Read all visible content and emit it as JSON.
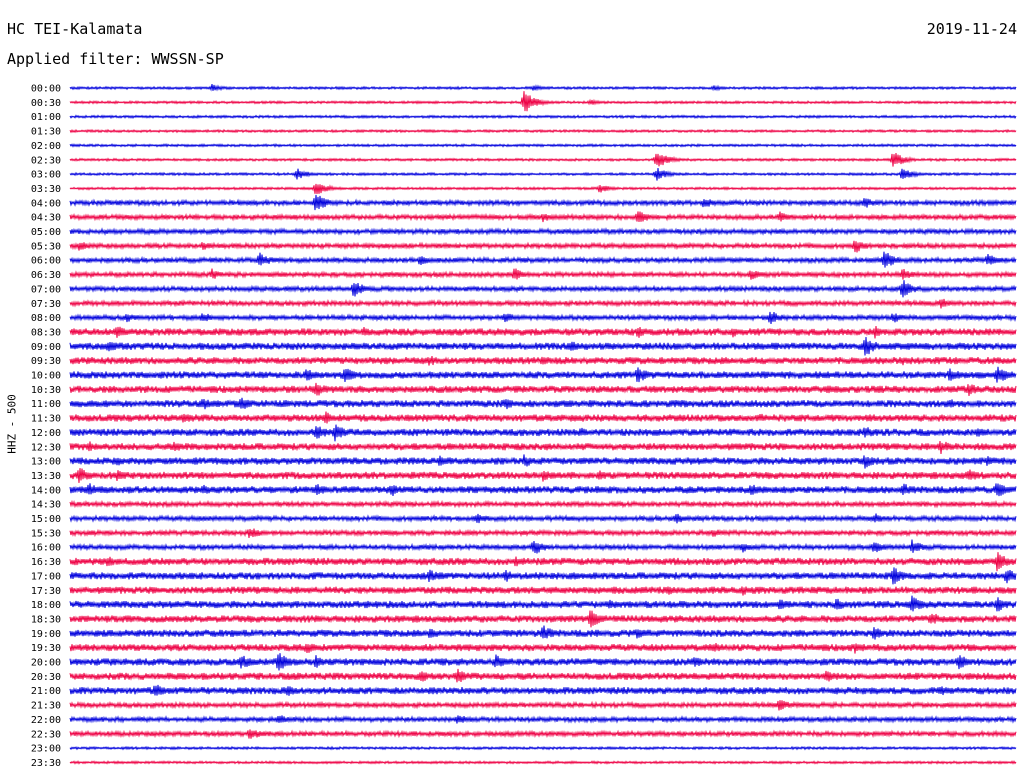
{
  "header": {
    "station": "HC TEI-Kalamata",
    "date": "2019-11-24",
    "filter": "Applied filter: WWSSN-SP"
  },
  "channel_label": "HHZ - 500",
  "colors": {
    "blue": "#0000dd",
    "red": "#ee0044"
  },
  "chart_data": {
    "type": "line",
    "description_type": "helicorder",
    "ylabel": "HHZ - 500",
    "row_labels": [
      "00:00",
      "00:30",
      "01:00",
      "01:30",
      "02:00",
      "02:30",
      "03:00",
      "03:30",
      "04:00",
      "04:30",
      "05:00",
      "05:30",
      "06:00",
      "06:30",
      "07:00",
      "07:30",
      "08:00",
      "08:30",
      "09:00",
      "09:30",
      "10:00",
      "10:30",
      "11:00",
      "11:30",
      "12:00",
      "12:30",
      "13:00",
      "13:30",
      "14:00",
      "14:30",
      "15:00",
      "15:30",
      "16:00",
      "16:30",
      "17:00",
      "17:30",
      "18:00",
      "18:30",
      "19:00",
      "19:30",
      "20:00",
      "20:30",
      "21:00",
      "21:30",
      "22:00",
      "22:30",
      "23:00",
      "23:30"
    ],
    "series_colors": [
      "blue",
      "red"
    ],
    "noise_level": [
      1,
      1,
      1,
      1,
      1,
      1,
      1,
      1,
      2,
      2,
      2,
      2,
      2,
      2,
      2,
      2,
      2,
      3,
      3,
      3,
      3,
      3,
      3,
      3,
      3,
      3,
      3,
      3,
      3,
      2,
      2,
      2,
      2,
      3,
      3,
      3,
      3,
      3,
      3,
      3,
      3,
      3,
      3,
      2,
      2,
      2,
      1,
      1
    ],
    "events": [
      {
        "row": 0,
        "x": 0.15,
        "a": 4
      },
      {
        "row": 0,
        "x": 0.49,
        "a": 3
      },
      {
        "row": 0,
        "x": 0.68,
        "a": 3
      },
      {
        "row": 1,
        "x": 0.48,
        "a": 12
      },
      {
        "row": 1,
        "x": 0.55,
        "a": 3
      },
      {
        "row": 5,
        "x": 0.62,
        "a": 10
      },
      {
        "row": 5,
        "x": 0.87,
        "a": 9
      },
      {
        "row": 6,
        "x": 0.24,
        "a": 6
      },
      {
        "row": 6,
        "x": 0.62,
        "a": 7
      },
      {
        "row": 6,
        "x": 0.88,
        "a": 7
      },
      {
        "row": 7,
        "x": 0.26,
        "a": 8
      },
      {
        "row": 7,
        "x": 0.56,
        "a": 5
      },
      {
        "row": 8,
        "x": 0.26,
        "a": 10
      },
      {
        "row": 8,
        "x": 0.67,
        "a": 6
      },
      {
        "row": 8,
        "x": 0.84,
        "a": 6
      },
      {
        "row": 9,
        "x": 0.5,
        "a": 5
      },
      {
        "row": 9,
        "x": 0.6,
        "a": 8
      },
      {
        "row": 9,
        "x": 0.75,
        "a": 6
      },
      {
        "row": 11,
        "x": 0.01,
        "a": 6
      },
      {
        "row": 11,
        "x": 0.14,
        "a": 5
      },
      {
        "row": 11,
        "x": 0.83,
        "a": 8
      },
      {
        "row": 12,
        "x": 0.2,
        "a": 9
      },
      {
        "row": 12,
        "x": 0.37,
        "a": 6
      },
      {
        "row": 12,
        "x": 0.86,
        "a": 11
      },
      {
        "row": 12,
        "x": 0.97,
        "a": 7
      },
      {
        "row": 13,
        "x": 0.15,
        "a": 6
      },
      {
        "row": 13,
        "x": 0.47,
        "a": 7
      },
      {
        "row": 13,
        "x": 0.72,
        "a": 6
      },
      {
        "row": 13,
        "x": 0.88,
        "a": 7
      },
      {
        "row": 14,
        "x": 0.3,
        "a": 9
      },
      {
        "row": 14,
        "x": 0.88,
        "a": 10
      },
      {
        "row": 15,
        "x": 0.92,
        "a": 6
      },
      {
        "row": 16,
        "x": 0.06,
        "a": 5
      },
      {
        "row": 16,
        "x": 0.14,
        "a": 6
      },
      {
        "row": 16,
        "x": 0.46,
        "a": 6
      },
      {
        "row": 16,
        "x": 0.74,
        "a": 8
      },
      {
        "row": 16,
        "x": 0.87,
        "a": 6
      },
      {
        "row": 17,
        "x": 0.05,
        "a": 7
      },
      {
        "row": 17,
        "x": 0.31,
        "a": 6
      },
      {
        "row": 17,
        "x": 0.6,
        "a": 7
      },
      {
        "row": 17,
        "x": 0.7,
        "a": 6
      },
      {
        "row": 17,
        "x": 0.85,
        "a": 7
      },
      {
        "row": 18,
        "x": 0.04,
        "a": 7
      },
      {
        "row": 18,
        "x": 0.53,
        "a": 6
      },
      {
        "row": 18,
        "x": 0.84,
        "a": 12
      },
      {
        "row": 19,
        "x": 0.38,
        "a": 6
      },
      {
        "row": 19,
        "x": 0.5,
        "a": 5
      },
      {
        "row": 19,
        "x": 0.88,
        "a": 5
      },
      {
        "row": 20,
        "x": 0.25,
        "a": 8
      },
      {
        "row": 20,
        "x": 0.29,
        "a": 9
      },
      {
        "row": 20,
        "x": 0.6,
        "a": 9
      },
      {
        "row": 20,
        "x": 0.93,
        "a": 8
      },
      {
        "row": 20,
        "x": 0.98,
        "a": 10
      },
      {
        "row": 21,
        "x": 0.26,
        "a": 8
      },
      {
        "row": 21,
        "x": 0.8,
        "a": 5
      },
      {
        "row": 21,
        "x": 0.95,
        "a": 7
      },
      {
        "row": 22,
        "x": 0.14,
        "a": 7
      },
      {
        "row": 22,
        "x": 0.18,
        "a": 8
      },
      {
        "row": 22,
        "x": 0.46,
        "a": 7
      },
      {
        "row": 22,
        "x": 0.93,
        "a": 6
      },
      {
        "row": 23,
        "x": 0.12,
        "a": 6
      },
      {
        "row": 23,
        "x": 0.27,
        "a": 8
      },
      {
        "row": 23,
        "x": 0.73,
        "a": 5
      },
      {
        "row": 24,
        "x": 0.26,
        "a": 9
      },
      {
        "row": 24,
        "x": 0.28,
        "a": 10
      },
      {
        "row": 24,
        "x": 0.54,
        "a": 5
      },
      {
        "row": 24,
        "x": 0.84,
        "a": 7
      },
      {
        "row": 24,
        "x": 0.96,
        "a": 6
      },
      {
        "row": 25,
        "x": 0.02,
        "a": 6
      },
      {
        "row": 25,
        "x": 0.11,
        "a": 6
      },
      {
        "row": 25,
        "x": 0.92,
        "a": 8
      },
      {
        "row": 26,
        "x": 0.05,
        "a": 5
      },
      {
        "row": 26,
        "x": 0.39,
        "a": 6
      },
      {
        "row": 26,
        "x": 0.48,
        "a": 7
      },
      {
        "row": 26,
        "x": 0.84,
        "a": 8
      },
      {
        "row": 26,
        "x": 0.97,
        "a": 6
      },
      {
        "row": 27,
        "x": 0.01,
        "a": 9
      },
      {
        "row": 27,
        "x": 0.05,
        "a": 7
      },
      {
        "row": 27,
        "x": 0.5,
        "a": 7
      },
      {
        "row": 27,
        "x": 0.56,
        "a": 6
      },
      {
        "row": 27,
        "x": 0.95,
        "a": 8
      },
      {
        "row": 28,
        "x": 0.02,
        "a": 8
      },
      {
        "row": 28,
        "x": 0.14,
        "a": 6
      },
      {
        "row": 28,
        "x": 0.26,
        "a": 8
      },
      {
        "row": 28,
        "x": 0.34,
        "a": 7
      },
      {
        "row": 28,
        "x": 0.72,
        "a": 7
      },
      {
        "row": 28,
        "x": 0.88,
        "a": 8
      },
      {
        "row": 28,
        "x": 0.98,
        "a": 9
      },
      {
        "row": 30,
        "x": 0.43,
        "a": 6
      },
      {
        "row": 30,
        "x": 0.64,
        "a": 6
      },
      {
        "row": 30,
        "x": 0.85,
        "a": 6
      },
      {
        "row": 31,
        "x": 0.19,
        "a": 7
      },
      {
        "row": 31,
        "x": 0.68,
        "a": 5
      },
      {
        "row": 32,
        "x": 0.49,
        "a": 9
      },
      {
        "row": 32,
        "x": 0.71,
        "a": 6
      },
      {
        "row": 32,
        "x": 0.85,
        "a": 7
      },
      {
        "row": 32,
        "x": 0.89,
        "a": 8
      },
      {
        "row": 33,
        "x": 0.04,
        "a": 6
      },
      {
        "row": 33,
        "x": 0.47,
        "a": 6
      },
      {
        "row": 33,
        "x": 0.98,
        "a": 11
      },
      {
        "row": 34,
        "x": 0.38,
        "a": 7
      },
      {
        "row": 34,
        "x": 0.46,
        "a": 7
      },
      {
        "row": 34,
        "x": 0.87,
        "a": 10
      },
      {
        "row": 34,
        "x": 0.99,
        "a": 9
      },
      {
        "row": 35,
        "x": 0.63,
        "a": 6
      },
      {
        "row": 35,
        "x": 0.71,
        "a": 6
      },
      {
        "row": 36,
        "x": 0.57,
        "a": 6
      },
      {
        "row": 36,
        "x": 0.75,
        "a": 7
      },
      {
        "row": 36,
        "x": 0.81,
        "a": 7
      },
      {
        "row": 36,
        "x": 0.89,
        "a": 10
      },
      {
        "row": 36,
        "x": 0.98,
        "a": 8
      },
      {
        "row": 37,
        "x": 0.06,
        "a": 5
      },
      {
        "row": 37,
        "x": 0.55,
        "a": 10
      },
      {
        "row": 37,
        "x": 0.91,
        "a": 8
      },
      {
        "row": 38,
        "x": 0.38,
        "a": 6
      },
      {
        "row": 38,
        "x": 0.5,
        "a": 9
      },
      {
        "row": 38,
        "x": 0.6,
        "a": 7
      },
      {
        "row": 38,
        "x": 0.85,
        "a": 8
      },
      {
        "row": 39,
        "x": 0.25,
        "a": 7
      },
      {
        "row": 39,
        "x": 0.68,
        "a": 6
      },
      {
        "row": 39,
        "x": 0.83,
        "a": 7
      },
      {
        "row": 40,
        "x": 0.18,
        "a": 9
      },
      {
        "row": 40,
        "x": 0.22,
        "a": 11
      },
      {
        "row": 40,
        "x": 0.26,
        "a": 8
      },
      {
        "row": 40,
        "x": 0.45,
        "a": 8
      },
      {
        "row": 40,
        "x": 0.66,
        "a": 6
      },
      {
        "row": 40,
        "x": 0.94,
        "a": 8
      },
      {
        "row": 41,
        "x": 0.37,
        "a": 7
      },
      {
        "row": 41,
        "x": 0.41,
        "a": 8
      },
      {
        "row": 41,
        "x": 0.8,
        "a": 7
      },
      {
        "row": 42,
        "x": 0.09,
        "a": 8
      },
      {
        "row": 42,
        "x": 0.23,
        "a": 7
      },
      {
        "row": 42,
        "x": 0.92,
        "a": 6
      },
      {
        "row": 43,
        "x": 0.75,
        "a": 7
      },
      {
        "row": 44,
        "x": 0.22,
        "a": 6
      },
      {
        "row": 44,
        "x": 0.41,
        "a": 6
      },
      {
        "row": 45,
        "x": 0.19,
        "a": 7
      }
    ]
  }
}
